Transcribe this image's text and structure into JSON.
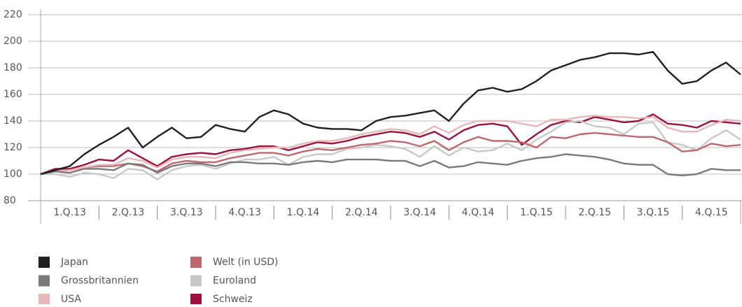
{
  "chart_data": {
    "type": "line",
    "categories": [
      null,
      null,
      "1.Q.13",
      null,
      null,
      null,
      "2.Q.13",
      null,
      null,
      null,
      "3.Q.13",
      null,
      null,
      null,
      "4.Q.13",
      null,
      null,
      null,
      "1.Q.14",
      null,
      null,
      null,
      "2.Q.14",
      null,
      null,
      null,
      "3.Q.14",
      null,
      null,
      null,
      "4.Q.14",
      null,
      null,
      null,
      "1.Q.15",
      null,
      null,
      null,
      "2.Q.15",
      null,
      null,
      null,
      "3.Q.15",
      null,
      null,
      null,
      "4.Q.15",
      null,
      null
    ],
    "ylim": [
      80,
      220
    ],
    "yticks": [
      80,
      100,
      120,
      140,
      160,
      180,
      200,
      220
    ],
    "grid": true,
    "series": [
      {
        "name": "Japan",
        "color": "#231f20",
        "values": [
          100,
          103,
          106,
          115,
          122,
          128,
          135,
          120,
          128,
          135,
          127,
          128,
          137,
          134,
          132,
          143,
          148,
          145,
          138,
          135,
          134,
          134,
          133,
          140,
          143,
          144,
          146,
          148,
          140,
          153,
          163,
          165,
          162,
          164,
          170,
          178,
          182,
          186,
          188,
          191,
          191,
          190,
          192,
          178,
          168,
          170,
          178,
          184,
          175
        ]
      },
      {
        "name": "Grossbritannien",
        "color": "#7a7a7a",
        "values": [
          100,
          102,
          101,
          104,
          104,
          103,
          108,
          107,
          101,
          106,
          108,
          108,
          106,
          109,
          109,
          108,
          108,
          107,
          109,
          110,
          109,
          111,
          111,
          111,
          110,
          110,
          106,
          110,
          105,
          106,
          109,
          108,
          107,
          110,
          112,
          113,
          115,
          114,
          113,
          111,
          108,
          107,
          107,
          100,
          99,
          100,
          104,
          103,
          103
        ]
      },
      {
        "name": "USA",
        "color": "#e8b8b8",
        "values": [
          100,
          102,
          103,
          105,
          107,
          107,
          112,
          110,
          105,
          111,
          113,
          113,
          112,
          116,
          118,
          119,
          120,
          120,
          123,
          125,
          125,
          127,
          130,
          132,
          134,
          133,
          130,
          136,
          131,
          137,
          140,
          140,
          140,
          138,
          136,
          141,
          141,
          143,
          144,
          143,
          143,
          142,
          143,
          135,
          132,
          132,
          137,
          141,
          140
        ]
      },
      {
        "name": "Welt (in USD)",
        "color": "#c0676b",
        "values": [
          100,
          103,
          103,
          105,
          106,
          106,
          108,
          106,
          102,
          108,
          110,
          109,
          109,
          112,
          114,
          116,
          116,
          114,
          117,
          119,
          118,
          120,
          122,
          123,
          125,
          124,
          121,
          125,
          118,
          124,
          128,
          125,
          125,
          124,
          120,
          128,
          127,
          130,
          131,
          130,
          129,
          128,
          128,
          124,
          117,
          118,
          123,
          121,
          122
        ]
      },
      {
        "name": "Euroland",
        "color": "#c8c8c8",
        "values": [
          100,
          100,
          98,
          101,
          100,
          97,
          104,
          103,
          96,
          103,
          106,
          107,
          104,
          108,
          111,
          111,
          113,
          107,
          113,
          115,
          115,
          119,
          120,
          122,
          121,
          119,
          113,
          121,
          114,
          120,
          117,
          118,
          123,
          118,
          126,
          132,
          139,
          140,
          136,
          135,
          130,
          138,
          139,
          124,
          122,
          118,
          127,
          133,
          126
        ]
      },
      {
        "name": "Schweiz",
        "color": "#a0103e",
        "values": [
          100,
          104,
          104,
          107,
          111,
          110,
          118,
          112,
          106,
          113,
          115,
          116,
          115,
          118,
          119,
          121,
          121,
          118,
          121,
          124,
          123,
          125,
          128,
          130,
          132,
          131,
          128,
          132,
          126,
          133,
          137,
          138,
          136,
          122,
          130,
          137,
          140,
          139,
          143,
          141,
          139,
          140,
          145,
          138,
          137,
          135,
          140,
          139,
          138
        ]
      }
    ]
  }
}
